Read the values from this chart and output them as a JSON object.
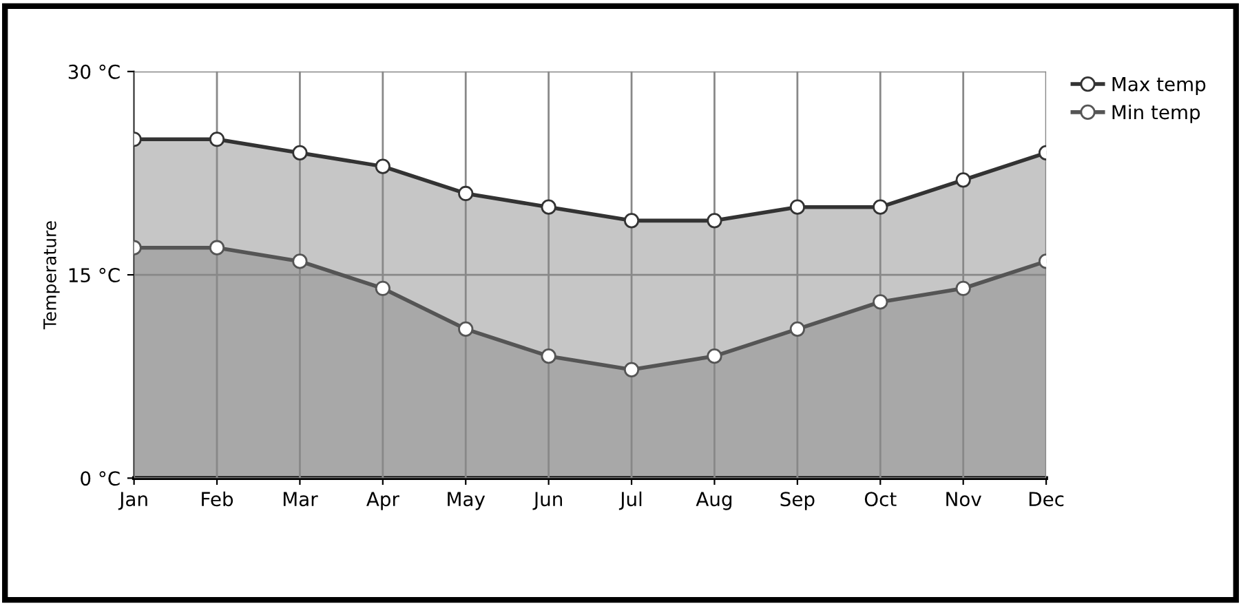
{
  "chart_data": {
    "type": "area",
    "ylabel": "Temperature",
    "categories": [
      "Jan",
      "Feb",
      "Mar",
      "Apr",
      "May",
      "Jun",
      "Jul",
      "Aug",
      "Sep",
      "Oct",
      "Nov",
      "Dec"
    ],
    "series": [
      {
        "name": "Max temp",
        "color": "#c6c6c6",
        "values": [
          25,
          25,
          24,
          23,
          21,
          20,
          19,
          19,
          20,
          20,
          22,
          24
        ]
      },
      {
        "name": "Min temp",
        "color": "#a8a8a8",
        "values": [
          17,
          17,
          16,
          14,
          11,
          9,
          8,
          9,
          11,
          13,
          14,
          16
        ]
      }
    ],
    "ylim": [
      0,
      30
    ],
    "yticks": [
      {
        "value": 0,
        "label": "0 °C"
      },
      {
        "value": 15,
        "label": "15 °C"
      },
      {
        "value": 30,
        "label": "30 °C"
      }
    ],
    "grid": true,
    "legend": "top right",
    "marker": "circle",
    "line_style": "solid"
  }
}
